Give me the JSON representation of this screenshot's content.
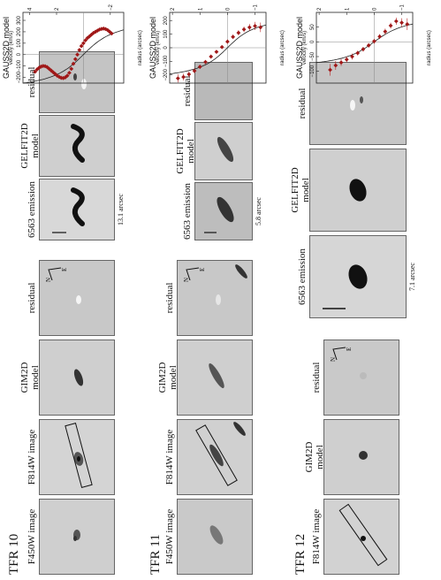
{
  "rows": [
    {
      "id": "tfr10",
      "label": "TFR 10",
      "hst_titles": [
        "F450W image",
        "F814W image",
        "GIM2D\nmodel",
        "residual"
      ],
      "gelfit_titles": [
        "6563 emission",
        "GELFIT2D\nmodel",
        "residual"
      ],
      "scale": "13.1 arcsec",
      "compass": {
        "n": "N",
        "e": "E"
      }
    },
    {
      "id": "tfr11",
      "label": "TFR 11",
      "hst_titles": [
        "F450W image",
        "F814W image",
        "GIM2D\nmodel",
        "residual"
      ],
      "gelfit_titles": [
        "6563 emission",
        "GELFIT2D\nmodel",
        "residual"
      ],
      "scale": "5.8 arcsec",
      "compass": {
        "n": "N",
        "e": "E"
      }
    },
    {
      "id": "tfr12",
      "label": "TFR 12",
      "hst_titles": [
        "F814W image",
        "GIM2D\nmodel",
        "residual"
      ],
      "gelfit_titles": [
        "6563 emission",
        "GELFIT2D\nmodel",
        "residual"
      ],
      "scale": "7.1 arcsec",
      "compass": {
        "n": "N",
        "e": "E"
      }
    }
  ],
  "chart_data": [
    {
      "type": "scatter",
      "title": "GAUSS2D model",
      "xlabel": "radius (arcsec)",
      "ylabel": "velocity (km/s)",
      "xlim": [
        -3,
        4.5
      ],
      "ylim": [
        -250,
        370
      ],
      "xticks": [
        4,
        2,
        -2
      ],
      "xtick_labels": [
        "4",
        "2",
        "−2"
      ],
      "yticks": [
        -200,
        -100,
        0,
        100,
        200,
        300
      ],
      "ytick_labels": [
        "−200",
        "−100",
        "0",
        "100",
        "200",
        "300"
      ],
      "x": [
        3.6,
        3.45,
        3.3,
        3.15,
        3.0,
        2.85,
        2.7,
        2.55,
        2.4,
        2.25,
        2.1,
        1.95,
        1.8,
        1.65,
        1.5,
        1.35,
        1.2,
        1.05,
        0.9,
        0.75,
        0.6,
        0.45,
        0.3,
        0.15,
        0.0,
        -0.15,
        -0.3,
        -0.45,
        -0.6,
        -0.75,
        -0.9,
        -1.05,
        -1.2,
        -1.35,
        -1.5,
        -1.65,
        -1.8,
        -1.95,
        -2.1
      ],
      "y": [
        -150,
        -130,
        -115,
        -105,
        -100,
        -102,
        -110,
        -125,
        -140,
        -155,
        -170,
        -185,
        -196,
        -204,
        -206,
        -200,
        -185,
        -160,
        -125,
        -80,
        -40,
        0,
        40,
        75,
        100,
        125,
        145,
        160,
        175,
        190,
        200,
        210,
        220,
        225,
        228,
        224,
        215,
        200,
        185
      ],
      "model": {
        "amplitude": 330,
        "scale": 1.8
      },
      "grid": false
    },
    {
      "type": "scatter",
      "title": "GAUSS2D model",
      "xlabel": "radius (arcsec)",
      "ylabel": "velocity (km/s)",
      "xlim": [
        -1.4,
        2.1
      ],
      "ylim": [
        -260,
        260
      ],
      "xticks": [
        2,
        1,
        0,
        -1
      ],
      "xtick_labels": [
        "2",
        "1",
        "0",
        "−1"
      ],
      "yticks": [
        -200,
        -100,
        0,
        100,
        200
      ],
      "ytick_labels": [
        "−200",
        "−100",
        "0",
        "100",
        "200"
      ],
      "x": [
        1.8,
        1.6,
        1.4,
        1.2,
        1.0,
        0.8,
        0.6,
        0.4,
        0.2,
        0.0,
        -0.2,
        -0.4,
        -0.6,
        -0.8,
        -1.0,
        -1.2
      ],
      "y": [
        -225,
        -215,
        -195,
        -170,
        -140,
        -105,
        -65,
        -30,
        5,
        45,
        80,
        110,
        135,
        150,
        160,
        150
      ],
      "errors": [
        30,
        25,
        20,
        18,
        16,
        15,
        14,
        14,
        14,
        15,
        16,
        18,
        20,
        25,
        30,
        35
      ],
      "model": {
        "amplitude": 250,
        "scale": 0.8
      },
      "grid": false
    },
    {
      "type": "scatter",
      "title": "GAUSS2D model",
      "xlabel": "radius (arcsec)",
      "ylabel": "velocity (km/s)",
      "xlim": [
        -1.4,
        2.1
      ],
      "ylim": [
        -140,
        100
      ],
      "xticks": [
        2,
        1,
        0,
        -1
      ],
      "xtick_labels": [
        "2",
        "1",
        "0",
        "−1"
      ],
      "yticks": [
        -100,
        -50,
        0,
        50
      ],
      "ytick_labels": [
        "−100",
        "−50",
        "0",
        "50"
      ],
      "x": [
        1.6,
        1.4,
        1.2,
        1.0,
        0.8,
        0.6,
        0.4,
        0.2,
        0.0,
        -0.2,
        -0.4,
        -0.6,
        -0.8,
        -1.0,
        -1.2
      ],
      "y": [
        -95,
        -80,
        -70,
        -60,
        -50,
        -38,
        -25,
        -12,
        2,
        18,
        35,
        55,
        70,
        65,
        60
      ],
      "errors": [
        20,
        15,
        12,
        10,
        10,
        8,
        8,
        8,
        8,
        8,
        10,
        10,
        12,
        15,
        20
      ],
      "model": {
        "amplitude": 95,
        "scale": 0.9
      },
      "grid": false
    }
  ]
}
